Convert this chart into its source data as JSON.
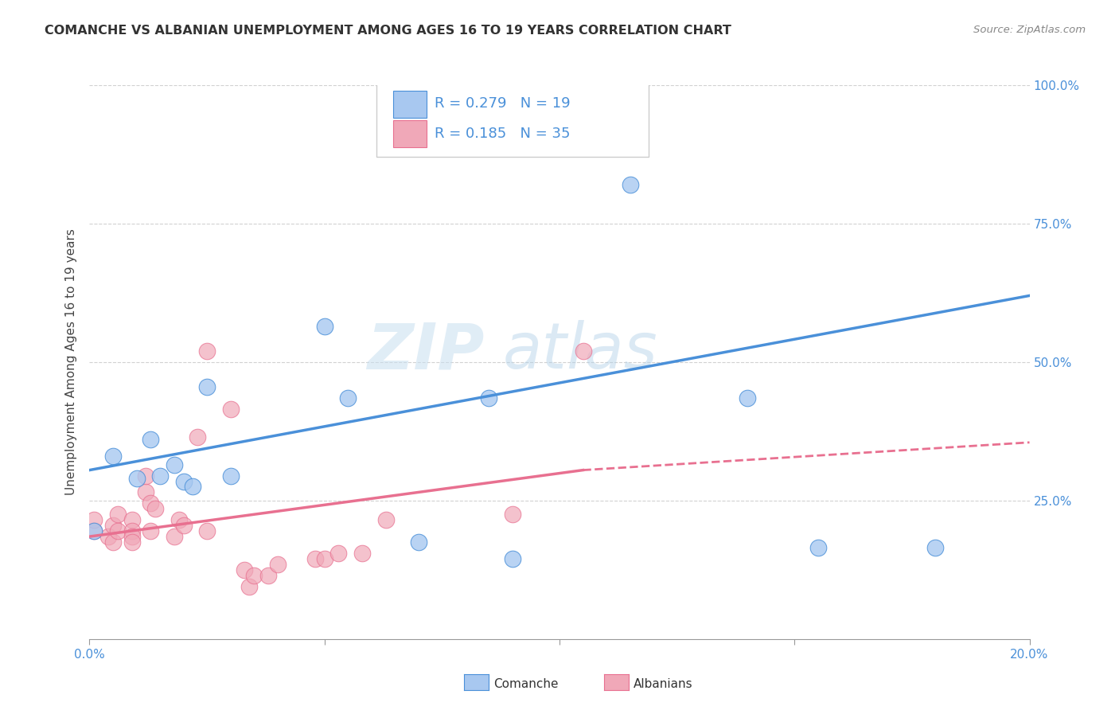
{
  "title": "COMANCHE VS ALBANIAN UNEMPLOYMENT AMONG AGES 16 TO 19 YEARS CORRELATION CHART",
  "source": "Source: ZipAtlas.com",
  "ylabel": "Unemployment Among Ages 16 to 19 years",
  "xlim": [
    0.0,
    0.2
  ],
  "ylim": [
    0.0,
    1.0
  ],
  "xticks": [
    0.0,
    0.05,
    0.1,
    0.15,
    0.2
  ],
  "xtick_labels": [
    "0.0%",
    "",
    "",
    "",
    "20.0%"
  ],
  "yticks_right": [
    0.25,
    0.5,
    0.75,
    1.0
  ],
  "ytick_labels_right": [
    "25.0%",
    "50.0%",
    "75.0%",
    "100.0%"
  ],
  "comanche_R": 0.279,
  "comanche_N": 19,
  "albanian_R": 0.185,
  "albanian_N": 35,
  "comanche_color": "#a8c8f0",
  "albanian_color": "#f0a8b8",
  "comanche_line_color": "#4a90d9",
  "albanian_line_color": "#e87090",
  "watermark_zip": "ZIP",
  "watermark_atlas": "atlas",
  "comanche_x": [
    0.001,
    0.005,
    0.01,
    0.013,
    0.015,
    0.018,
    0.02,
    0.022,
    0.025,
    0.03,
    0.05,
    0.055,
    0.07,
    0.085,
    0.09,
    0.115,
    0.14,
    0.155,
    0.18
  ],
  "comanche_y": [
    0.195,
    0.33,
    0.29,
    0.36,
    0.295,
    0.315,
    0.285,
    0.275,
    0.455,
    0.295,
    0.565,
    0.435,
    0.175,
    0.435,
    0.145,
    0.82,
    0.435,
    0.165,
    0.165
  ],
  "albanian_x": [
    0.001,
    0.001,
    0.004,
    0.005,
    0.005,
    0.006,
    0.006,
    0.009,
    0.009,
    0.009,
    0.009,
    0.012,
    0.012,
    0.013,
    0.013,
    0.014,
    0.018,
    0.019,
    0.02,
    0.023,
    0.025,
    0.025,
    0.03,
    0.033,
    0.034,
    0.035,
    0.038,
    0.04,
    0.048,
    0.05,
    0.053,
    0.058,
    0.063,
    0.09,
    0.105
  ],
  "albanian_y": [
    0.195,
    0.215,
    0.185,
    0.205,
    0.175,
    0.195,
    0.225,
    0.215,
    0.195,
    0.185,
    0.175,
    0.265,
    0.295,
    0.245,
    0.195,
    0.235,
    0.185,
    0.215,
    0.205,
    0.365,
    0.195,
    0.52,
    0.415,
    0.125,
    0.095,
    0.115,
    0.115,
    0.135,
    0.145,
    0.145,
    0.155,
    0.155,
    0.215,
    0.225,
    0.52
  ],
  "legend_label_comanche": "Comanche",
  "legend_label_albanian": "Albanians",
  "background_color": "#ffffff",
  "grid_color": "#cccccc",
  "comanche_line_y0": 0.305,
  "comanche_line_y1": 0.62,
  "albanian_line_y0": 0.185,
  "albanian_line_solid_x1": 0.105,
  "albanian_line_y_solid1": 0.305,
  "albanian_line_y_dash1": 0.355
}
